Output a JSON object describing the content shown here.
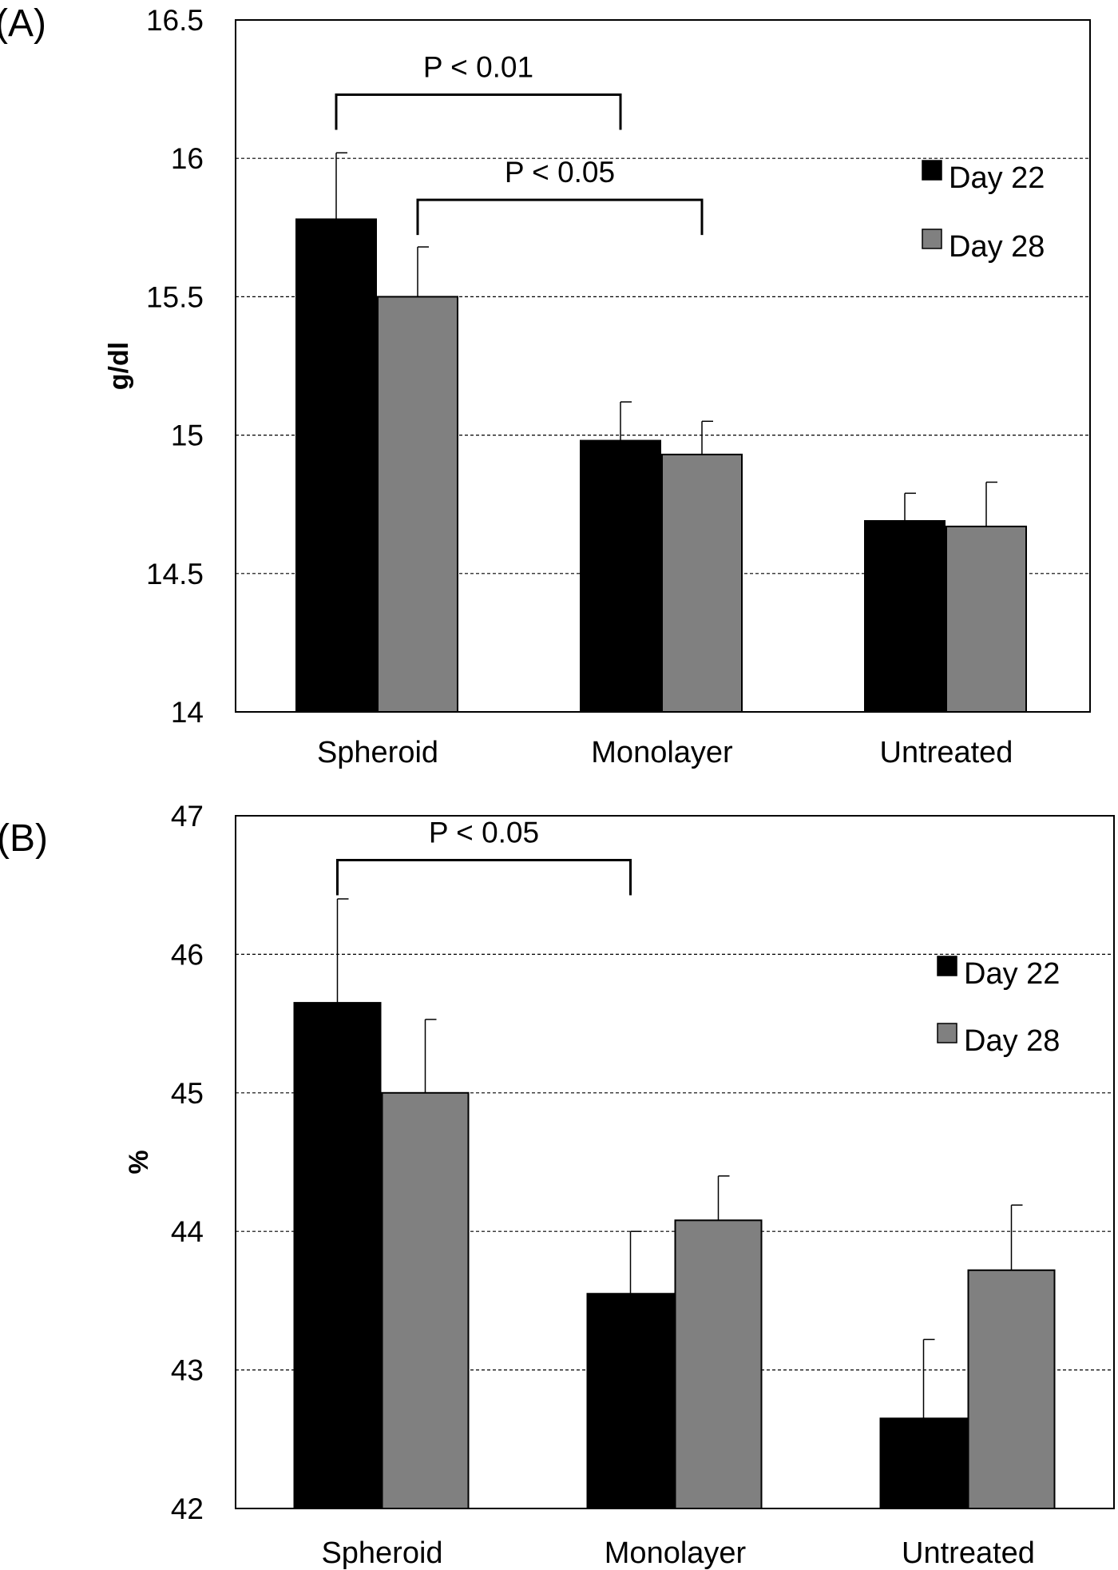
{
  "figure": "bar chart with two panels",
  "chart_data": [
    {
      "type": "bar",
      "panel_label": "(A)",
      "title": "",
      "xlabel": "",
      "ylabel": "g/dl",
      "ylim": [
        14,
        16.5
      ],
      "yticks": [
        14,
        14.5,
        15,
        15.5,
        16,
        16.5
      ],
      "ytick_labels": [
        "14",
        "14.5",
        "15",
        "15.5",
        "16",
        "16.5"
      ],
      "grid": true,
      "legend_position": "top-right",
      "categories": [
        "Spheroid",
        "Monolayer",
        "Untreated"
      ],
      "series": [
        {
          "name": "Day 22",
          "color": "#000000",
          "values": [
            15.78,
            14.98,
            14.69
          ],
          "errors": [
            0.24,
            0.14,
            0.1
          ]
        },
        {
          "name": "Day 28",
          "color": "#808080",
          "values": [
            15.5,
            14.93,
            14.67
          ],
          "errors": [
            0.18,
            0.12,
            0.16
          ]
        }
      ],
      "annotations": [
        {
          "text": "P < 0.01",
          "from": {
            "category": 0,
            "series": 0
          },
          "to": {
            "category": 1,
            "series": 0
          },
          "y_level": 16.23
        },
        {
          "text": "P < 0.05",
          "from": {
            "category": 0,
            "series": 1
          },
          "to": {
            "category": 1,
            "series": 1
          },
          "y_level": 15.85
        }
      ]
    },
    {
      "type": "bar",
      "panel_label": "(B)",
      "title": "",
      "xlabel": "",
      "ylabel": "%",
      "ylim": [
        42,
        47
      ],
      "yticks": [
        42,
        43,
        44,
        45,
        46,
        47
      ],
      "ytick_labels": [
        "42",
        "43",
        "44",
        "45",
        "46",
        "47"
      ],
      "grid": true,
      "legend_position": "top-right",
      "categories": [
        "Spheroid",
        "Monolayer",
        "Untreated"
      ],
      "series": [
        {
          "name": "Day 22",
          "color": "#000000",
          "values": [
            45.65,
            43.55,
            42.65
          ],
          "errors": [
            0.75,
            0.45,
            0.57
          ]
        },
        {
          "name": "Day 28",
          "color": "#808080",
          "values": [
            45.0,
            44.08,
            43.72
          ],
          "errors": [
            0.53,
            0.32,
            0.47
          ]
        }
      ],
      "annotations": [
        {
          "text": "P < 0.05",
          "from": {
            "category": 0,
            "series": 0
          },
          "to": {
            "category": 1,
            "series": 0
          },
          "y_level": 46.68
        }
      ]
    }
  ]
}
